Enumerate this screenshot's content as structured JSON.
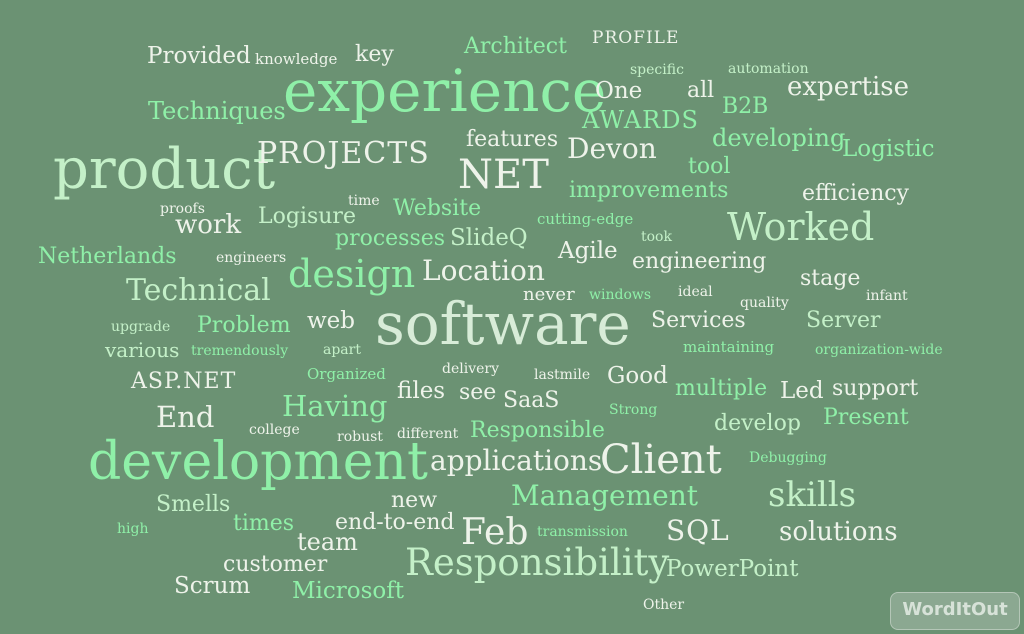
{
  "colors": {
    "background": "#6b9273",
    "light": "#eef3ea",
    "green": "#8ff0a8",
    "mint": "#c4f0c8"
  },
  "logo": {
    "text": "WordItOut"
  },
  "words": [
    "experience",
    "software",
    "development",
    "product",
    "Client",
    "Responsibility",
    "Worked",
    "NET",
    "design",
    "PROJECTS",
    "Feb",
    "skills",
    "Technical",
    "Management",
    "Location",
    "applications",
    "Architect",
    "PROFILE",
    "key",
    "Provided",
    "knowledge",
    "specific",
    "automation",
    "expertise",
    "One",
    "all",
    "B2B",
    "Techniques",
    "AWARDS",
    "features",
    "developing",
    "Devon",
    "Logistic",
    "tool",
    "improvements",
    "efficiency",
    "proofs",
    "time",
    "work",
    "Logisure",
    "Website",
    "cutting-edge",
    "processes",
    "SlideQ",
    "took",
    "Netherlands",
    "engineers",
    "Agile",
    "engineering",
    "stage",
    "never",
    "windows",
    "ideal",
    "infant",
    "quality",
    "upgrade",
    "Problem",
    "web",
    "Services",
    "Server",
    "various",
    "tremendously",
    "apart",
    "maintaining",
    "organization-wide",
    "ASP.NET",
    "Organized",
    "delivery",
    "lastmile",
    "Good",
    "End",
    "Having",
    "files",
    "see",
    "SaaS",
    "multiple",
    "Led",
    "support",
    "Strong",
    "Present",
    "college",
    "robust",
    "different",
    "Responsible",
    "develop",
    "Debugging",
    "Smells",
    "new",
    "high",
    "times",
    "end-to-end",
    "team",
    "transmission",
    "SQL",
    "solutions",
    "customer",
    "PowerPoint",
    "Scrum",
    "Microsoft",
    "Other"
  ]
}
